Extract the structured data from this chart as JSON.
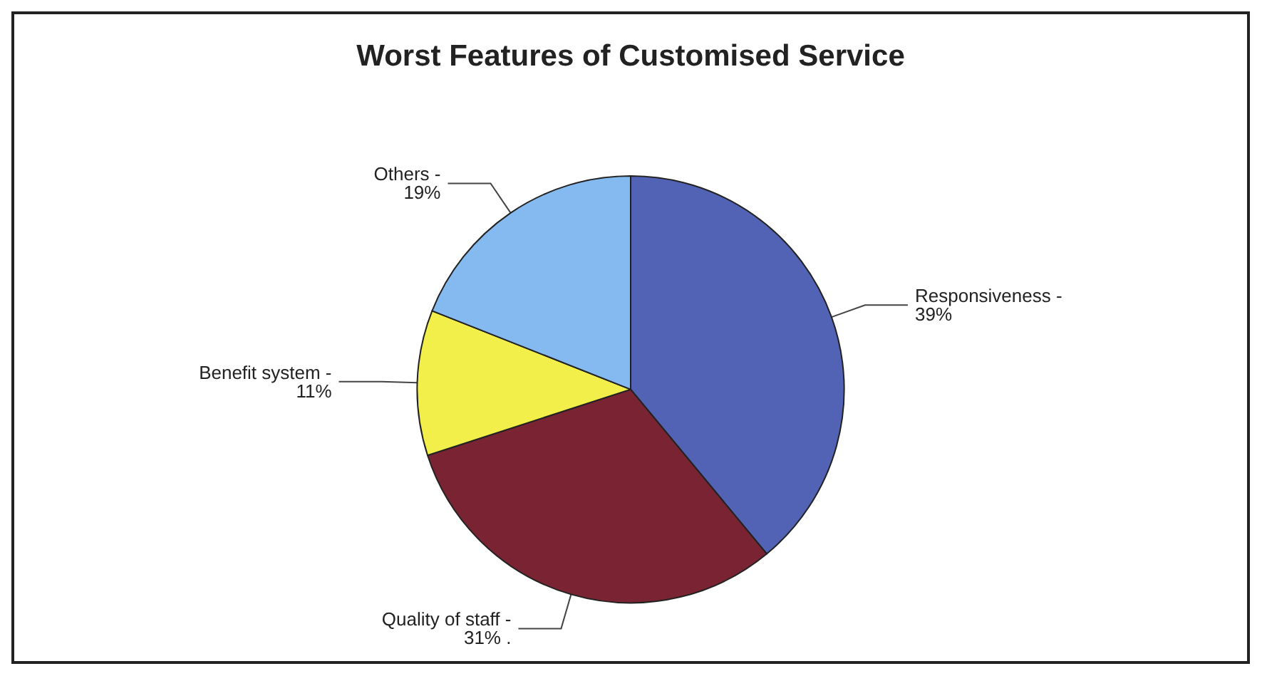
{
  "chart_data": {
    "type": "pie",
    "title": "Worst Features of Customised Service",
    "categories": [
      "Responsiveness -",
      "Quality of staff -",
      "Benefit system -",
      "Others -"
    ],
    "values": [
      39,
      31,
      11,
      19
    ],
    "value_labels": [
      "39%",
      "31% .",
      "11%",
      "19%"
    ],
    "colors": [
      "#5262b4",
      "#7a2433",
      "#f2ef4a",
      "#84baf0"
    ],
    "legend": false
  }
}
